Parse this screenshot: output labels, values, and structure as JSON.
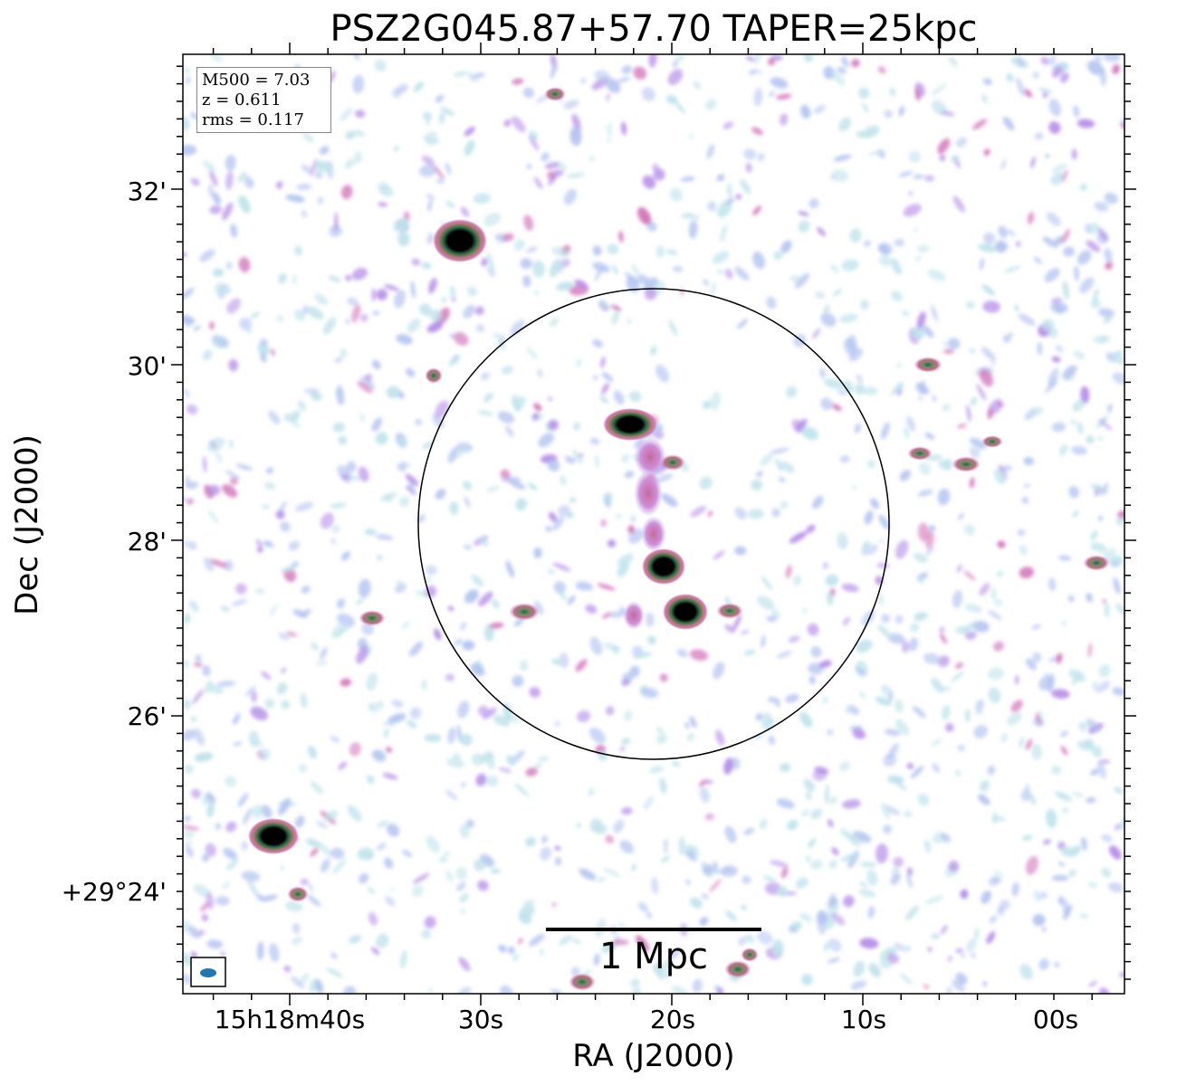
{
  "chart_data": {
    "type": "heatmap",
    "title": "PSZ2G045.87+57.70 TAPER=25kpc",
    "xlabel": "RA (J2000)",
    "ylabel": "Dec (J2000)",
    "xticks": [
      "15h18m40s",
      "30s",
      "20s",
      "10s",
      "00s"
    ],
    "yticks": [
      "32'",
      "30'",
      "28'",
      "26'",
      "+29°24'"
    ],
    "info": {
      "m500": "M500 = 7.03",
      "z": "z = 0.611",
      "rms": "rms = 0.117"
    },
    "scalebar_label": "1 Mpc",
    "colormap": [
      "#ffffff",
      "#bfe3ea",
      "#b3c4f0",
      "#b58ee8",
      "#d274b8",
      "#c06a78",
      "#3a7a4a",
      "#000000"
    ],
    "beam_color": "#1f77b4"
  }
}
